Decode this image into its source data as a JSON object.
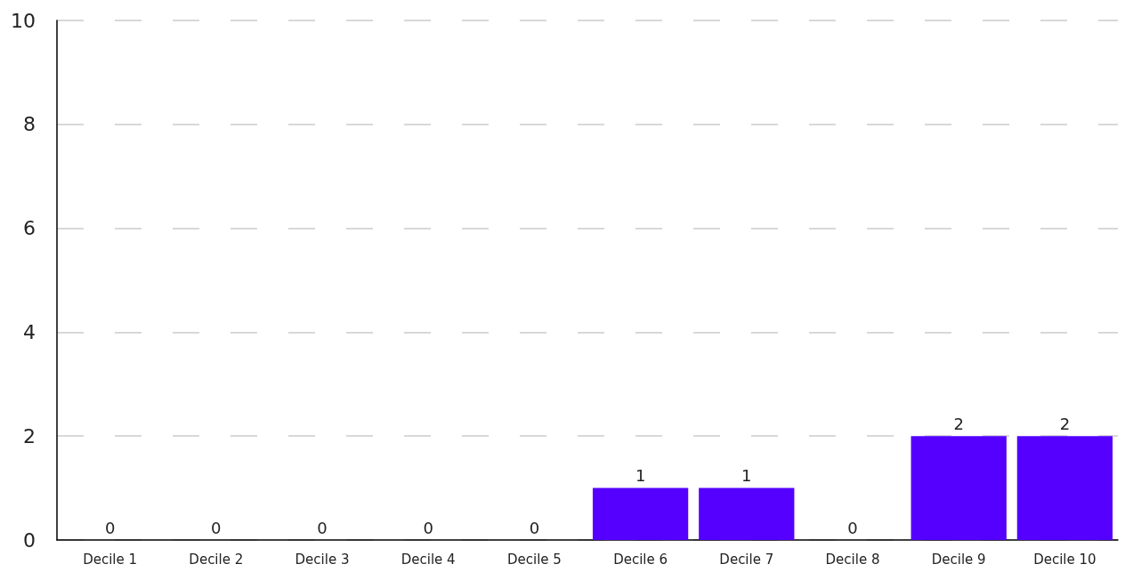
{
  "chart_data": {
    "type": "bar",
    "categories": [
      "Decile 1",
      "Decile 2",
      "Decile 3",
      "Decile 4",
      "Decile 5",
      "Decile 6",
      "Decile 7",
      "Decile 8",
      "Decile 9",
      "Decile 10"
    ],
    "values": [
      0,
      0,
      0,
      0,
      0,
      1,
      1,
      0,
      2,
      2
    ],
    "color": "#5500ff",
    "ylim": [
      0,
      10
    ],
    "yticks": [
      0,
      2,
      4,
      6,
      8,
      10
    ],
    "grid": "y",
    "data_labels": true
  }
}
